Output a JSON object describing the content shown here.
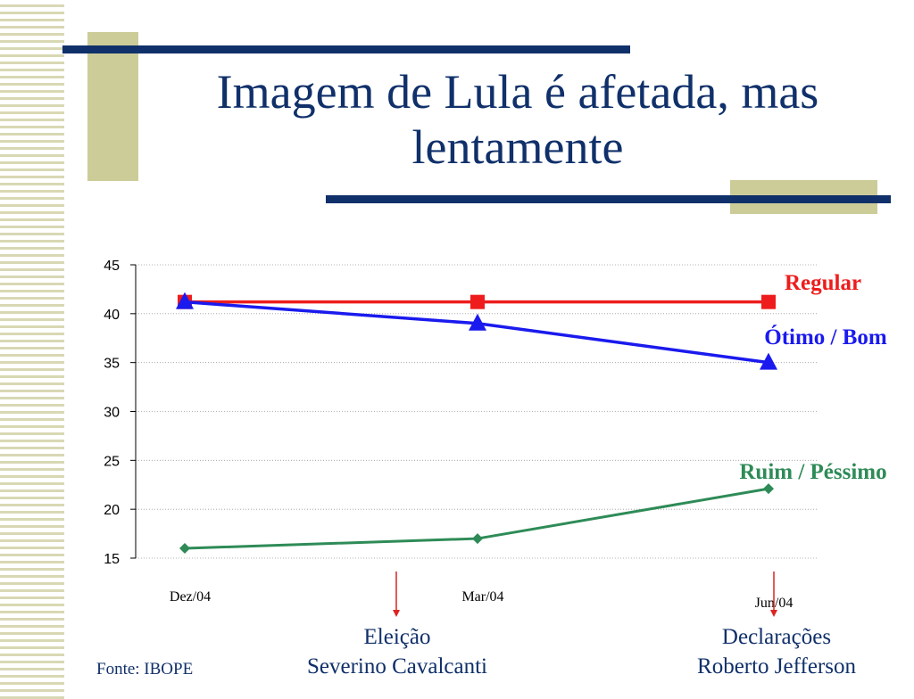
{
  "title": {
    "line1": "Imagem de Lula é afetada, mas",
    "line2": "lentamente"
  },
  "colors": {
    "title": "#10306a",
    "decor_khaki": "#cccc99",
    "decor_navy": "#10306a",
    "regular": "#ee1c1c",
    "otimo_bom": "#1a1aee",
    "ruim_pessimo": "#2e8b57",
    "event_arrow": "#dd2222"
  },
  "chart_data": {
    "type": "line",
    "categories": [
      "Dez/04",
      "Mar/04",
      "Jun/04"
    ],
    "series": [
      {
        "name": "Regular",
        "values": [
          41.2,
          41.2,
          41.2
        ],
        "color": "#ee1c1c",
        "marker": "square"
      },
      {
        "name": "Ótimo / Bom",
        "values": [
          41.2,
          39,
          35
        ],
        "color": "#1a1aee",
        "marker": "triangle"
      },
      {
        "name": "Ruim / Péssimo",
        "values": [
          16,
          17,
          22.1
        ],
        "color": "#2e8b57",
        "marker": "diamond"
      }
    ],
    "ylim": [
      15,
      45
    ],
    "yticks": [
      15,
      20,
      25,
      30,
      35,
      40,
      45
    ],
    "grid": true,
    "legend": "inline labels at right end of series"
  },
  "events": [
    {
      "line1": "Eleição",
      "line2": "Severino Cavalcanti"
    },
    {
      "line1": "Declarações",
      "line2": "Roberto Jefferson"
    }
  ],
  "source": "Fonte: IBOPE"
}
